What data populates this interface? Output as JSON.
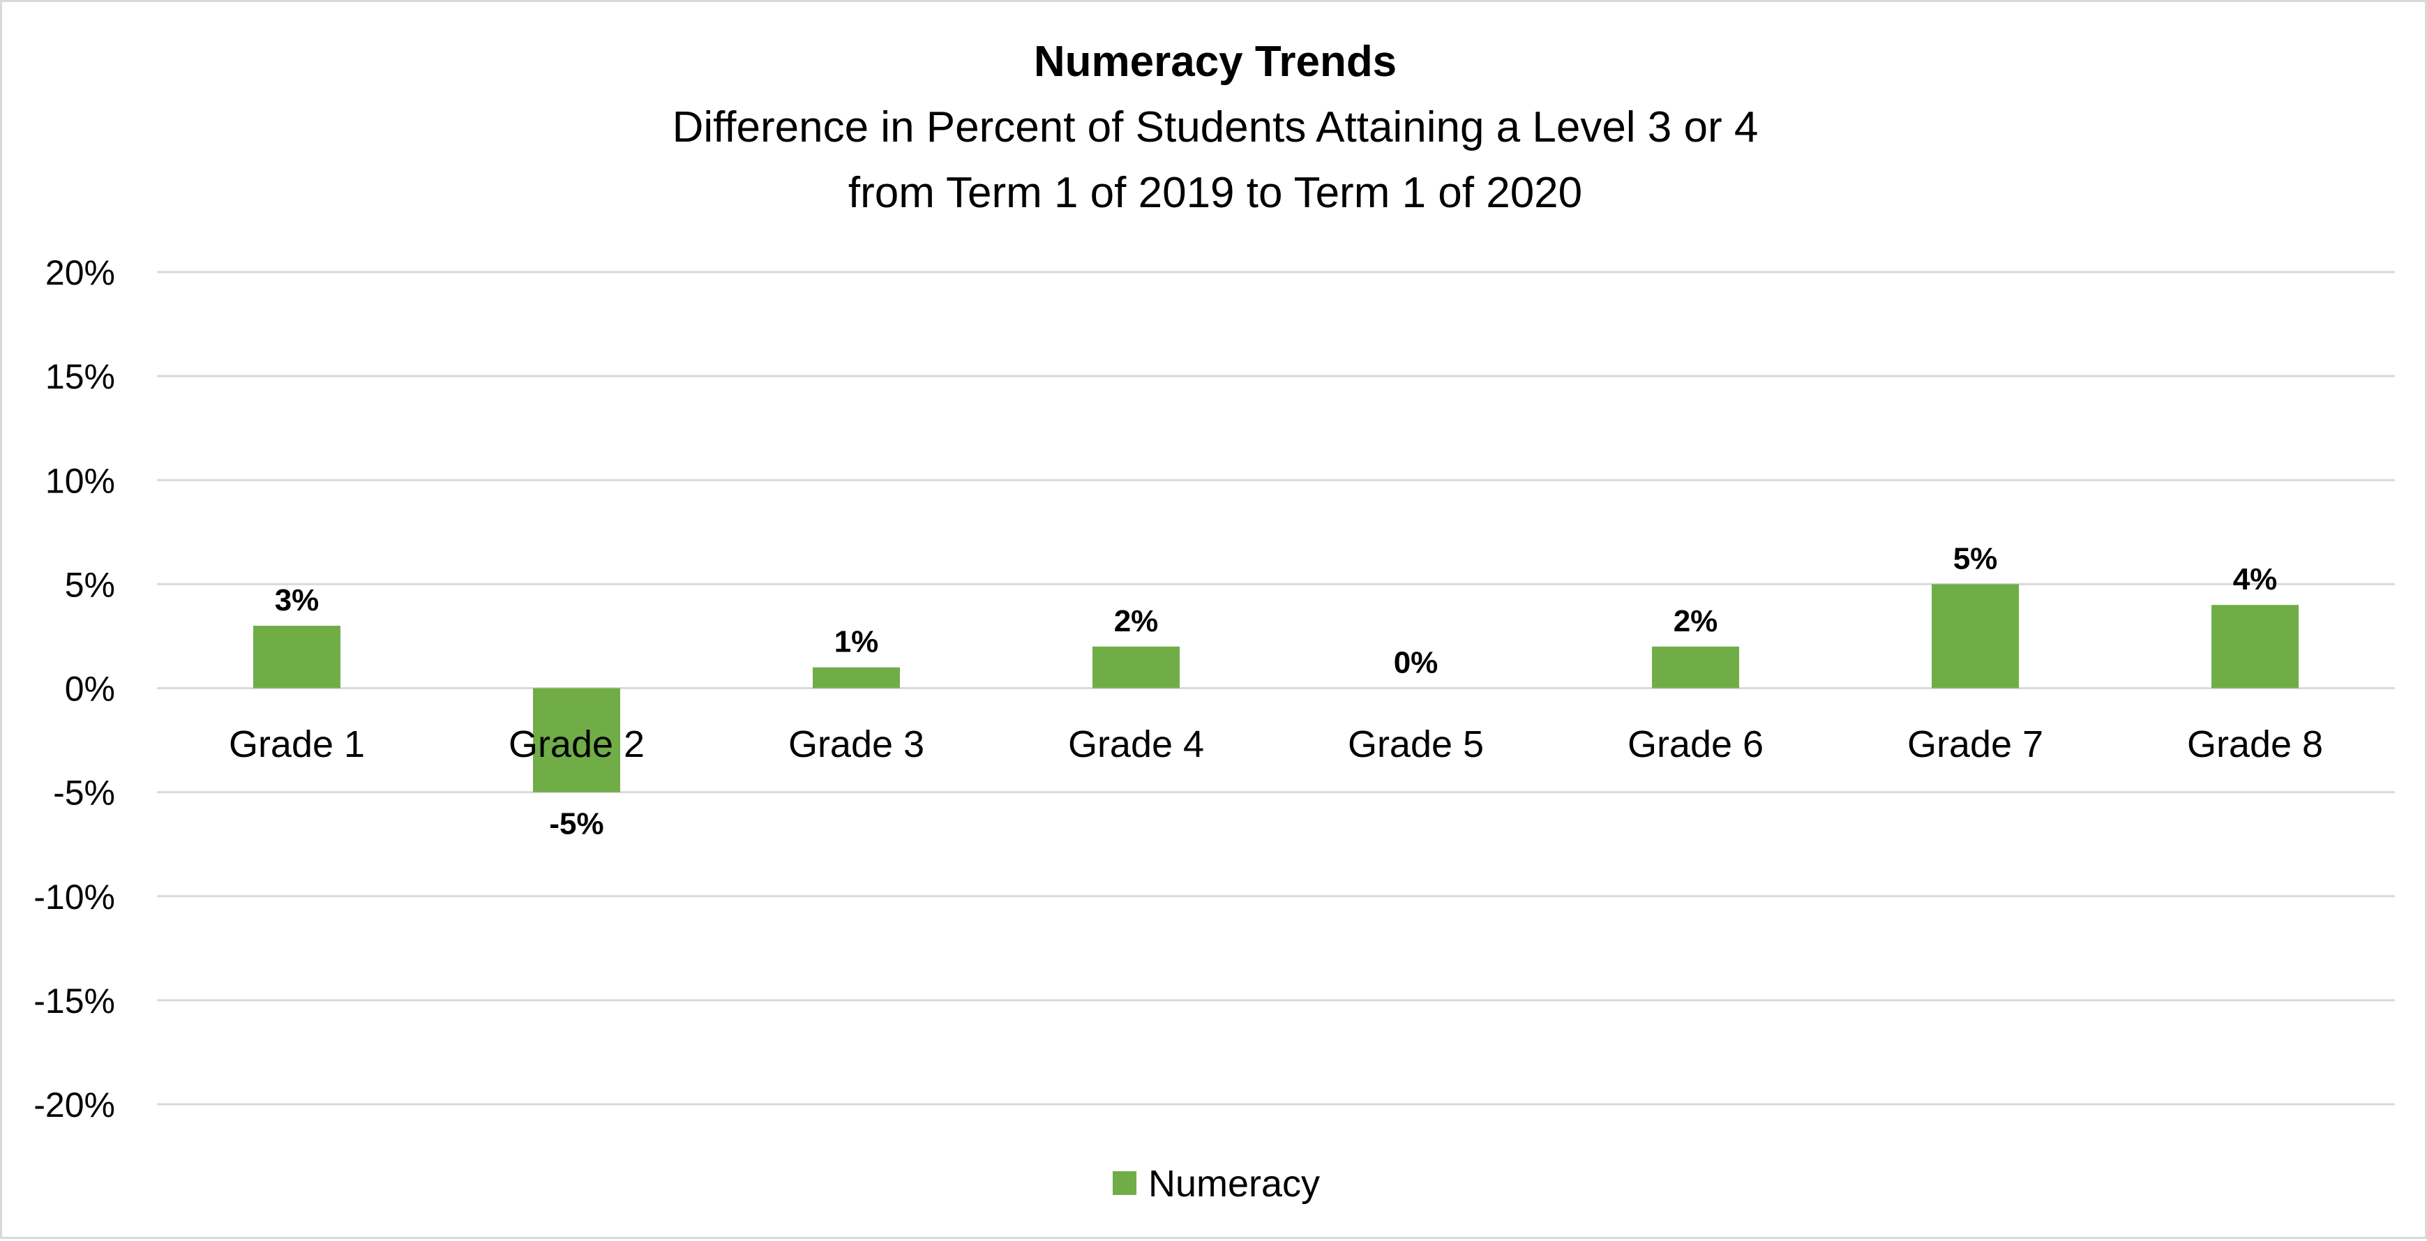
{
  "chart_data": {
    "type": "bar",
    "title": "Numeracy Trends",
    "subtitle_lines": [
      "Difference in Percent of Students Attaining a Level 3 or 4",
      "from Term 1 of 2019 to Term 1 of 2020"
    ],
    "categories": [
      "Grade 1",
      "Grade 2",
      "Grade 3",
      "Grade 4",
      "Grade 5",
      "Grade 6",
      "Grade 7",
      "Grade 8"
    ],
    "series": [
      {
        "name": "Numeracy",
        "values": [
          3,
          -5,
          1,
          2,
          0,
          2,
          5,
          4
        ],
        "color": "#70ad47"
      }
    ],
    "data_labels": [
      "3%",
      "-5%",
      "1%",
      "2%",
      "0%",
      "2%",
      "5%",
      "4%"
    ],
    "ylim": [
      -20,
      20
    ],
    "y_ticks": [
      20,
      15,
      10,
      5,
      0,
      -5,
      -10,
      -15,
      -20
    ],
    "y_tick_labels": [
      "20%",
      "15%",
      "10%",
      "5%",
      "0%",
      "-5%",
      "-10%",
      "-15%",
      "-20%"
    ],
    "grid": true,
    "legend_position": "bottom"
  }
}
